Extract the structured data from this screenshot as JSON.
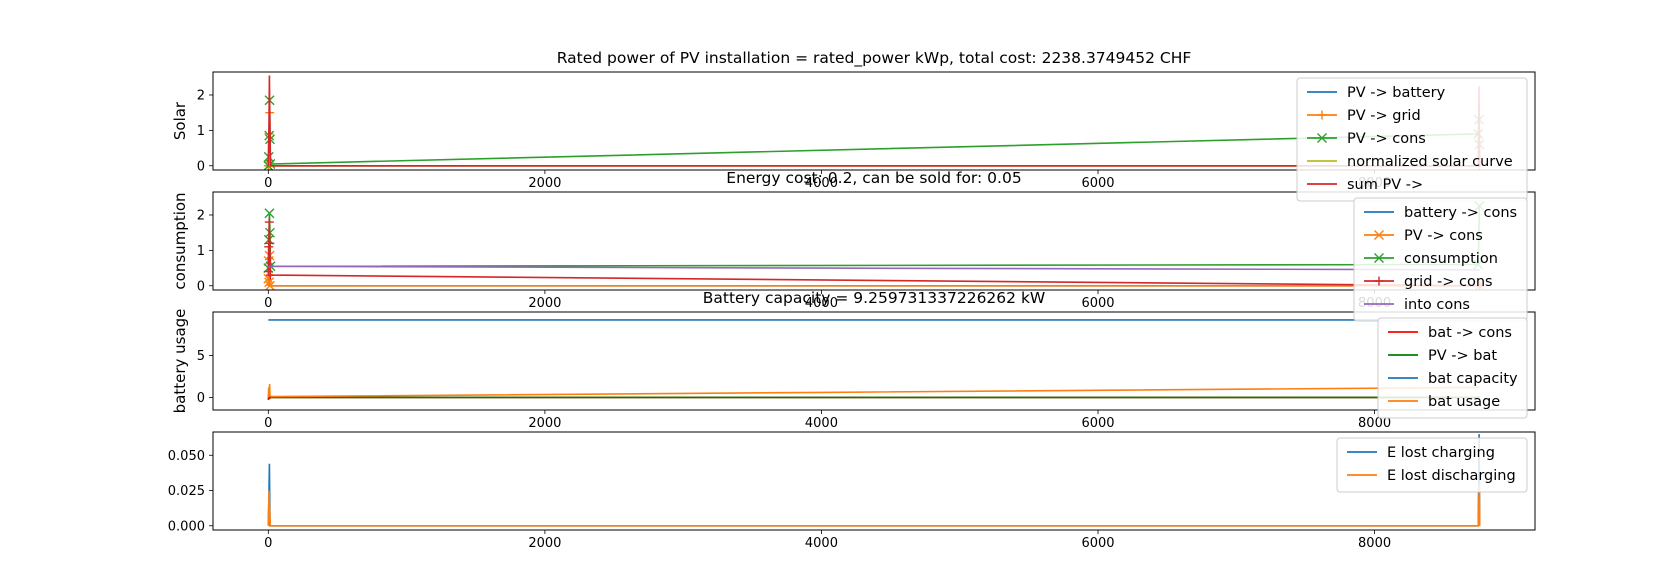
{
  "chart_data": [
    {
      "type": "line",
      "title": "Rated power of PV installation = rated_power kWp, total cost: 2238.3749452 CHF",
      "ylabel": "Solar",
      "xlim": [
        -400,
        9160
      ],
      "ylim": [
        -0.12,
        2.65
      ],
      "xticks": [
        0,
        2000,
        4000,
        6000,
        8000
      ],
      "yticks": [
        0,
        1,
        2
      ],
      "legend_position": "top-right",
      "series": [
        {
          "name": "PV -> battery",
          "color": "#1f77b4",
          "marker": "none",
          "x": [
            0,
            5,
            8,
            12,
            8760
          ],
          "y": [
            0,
            0.2,
            0.05,
            0,
            0
          ]
        },
        {
          "name": "PV -> grid",
          "color": "#ff7f0e",
          "marker": "plus",
          "x": [
            0,
            4,
            7,
            10,
            14,
            8760
          ],
          "y": [
            0,
            0.9,
            0.1,
            1.5,
            0,
            0
          ]
        },
        {
          "name": "PV -> cons",
          "color": "#2ca02c",
          "marker": "x",
          "x": [
            0,
            3,
            6,
            9,
            12,
            15,
            8750,
            8755,
            8758
          ],
          "y": [
            0,
            0.25,
            0.85,
            1.85,
            0.75,
            0.05,
            0.9,
            1.3,
            0.6
          ]
        },
        {
          "name": "normalized solar curve",
          "color": "#bcbd22",
          "marker": "none",
          "x": [
            0,
            6,
            12,
            8760
          ],
          "y": [
            0,
            0.4,
            0,
            0
          ]
        },
        {
          "name": "sum PV ->",
          "color": "#d62728",
          "marker": "none",
          "x": [
            0,
            5,
            8,
            12,
            16,
            8750,
            8755,
            8760
          ],
          "y": [
            0,
            1.2,
            2.55,
            1.0,
            0,
            0,
            2.25,
            0
          ]
        }
      ]
    },
    {
      "type": "line",
      "title": "Energy cost: 0.2, can be sold for: 0.05",
      "ylabel": "consumption",
      "xlim": [
        -400,
        9160
      ],
      "ylim": [
        -0.12,
        2.65
      ],
      "xticks": [
        0,
        2000,
        4000,
        6000,
        8000
      ],
      "yticks": [
        0,
        1,
        2
      ],
      "legend_position": "top-right",
      "series": [
        {
          "name": "battery -> cons",
          "color": "#1f77b4",
          "marker": "none",
          "x": [
            0,
            5,
            10,
            8760
          ],
          "y": [
            0,
            0.4,
            0,
            0
          ]
        },
        {
          "name": "PV -> cons",
          "color": "#ff7f0e",
          "marker": "x",
          "x": [
            0,
            3,
            6,
            9,
            12,
            8760
          ],
          "y": [
            0.2,
            0.7,
            0.1,
            0.85,
            0.0,
            0
          ]
        },
        {
          "name": "consumption",
          "color": "#2ca02c",
          "marker": "x",
          "x": [
            0,
            4,
            8,
            12,
            16,
            8750,
            8758
          ],
          "y": [
            0.5,
            1.3,
            2.05,
            1.5,
            0.55,
            0.6,
            2.25
          ]
        },
        {
          "name": "grid -> cons",
          "color": "#d62728",
          "marker": "plus",
          "x": [
            0,
            3,
            7,
            11,
            15,
            8760
          ],
          "y": [
            0.4,
            1.1,
            1.8,
            1.2,
            0.3,
            0
          ]
        },
        {
          "name": "into cons",
          "color": "#9467bd",
          "marker": "none",
          "x": [
            0,
            20,
            4000,
            8760
          ],
          "y": [
            0.52,
            0.55,
            0.5,
            0.45
          ]
        }
      ]
    },
    {
      "type": "line",
      "title": "Battery capacity = 9.259731337226262 kW",
      "ylabel": "battery usage",
      "xlim": [
        -400,
        9160
      ],
      "ylim": [
        -1.5,
        10.2
      ],
      "xticks": [
        0,
        2000,
        4000,
        6000,
        8000
      ],
      "yticks": [
        0,
        5
      ],
      "legend_position": "top-right",
      "series": [
        {
          "name": "bat -> cons",
          "color": "#ff0000",
          "marker": "none",
          "x": [
            0,
            4,
            8,
            12,
            8760
          ],
          "y": [
            -0.3,
            0.5,
            -0.2,
            0,
            0
          ]
        },
        {
          "name": "PV -> bat",
          "color": "#008000",
          "marker": "none",
          "x": [
            0,
            8760
          ],
          "y": [
            0,
            0
          ]
        },
        {
          "name": "bat capacity",
          "color": "#1f77b4",
          "marker": "none",
          "x": [
            0,
            8760
          ],
          "y": [
            9.26,
            9.26
          ]
        },
        {
          "name": "bat usage",
          "color": "#ff7f0e",
          "marker": "none",
          "x": [
            0,
            3,
            6,
            9,
            12,
            20,
            4000,
            8760
          ],
          "y": [
            0,
            1.2,
            0.4,
            1.6,
            0.2,
            0.1,
            0.6,
            1.2
          ]
        }
      ]
    },
    {
      "type": "line",
      "title": "",
      "ylabel": "",
      "xlim": [
        -400,
        9160
      ],
      "ylim": [
        -0.003,
        0.0665
      ],
      "xticks": [
        0,
        2000,
        4000,
        6000,
        8000
      ],
      "yticks": [
        0,
        0.025,
        0.05
      ],
      "ytick_labels": [
        "0.000",
        "0.025",
        "0.050"
      ],
      "legend_position": "top-right",
      "series": [
        {
          "name": "E lost charging",
          "color": "#1f77b4",
          "marker": "none",
          "x": [
            0,
            4,
            8,
            12,
            8750,
            8756,
            8760
          ],
          "y": [
            0,
            0.02,
            0.044,
            0,
            0,
            0.065,
            0
          ]
        },
        {
          "name": "E lost discharging",
          "color": "#ff7f0e",
          "marker": "none",
          "x": [
            0,
            5,
            9,
            14,
            8750,
            8757,
            8760
          ],
          "y": [
            0,
            0.025,
            0.012,
            0,
            0,
            0.03,
            0
          ]
        }
      ]
    }
  ]
}
